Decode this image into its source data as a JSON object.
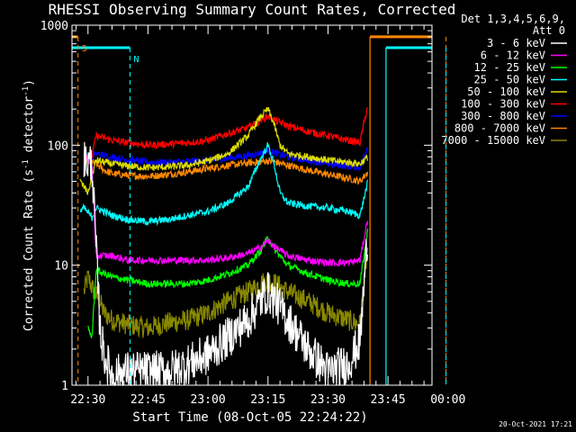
{
  "chart_data": {
    "type": "line",
    "title": "RHESSI Observing Summary Count Rates, Corrected",
    "xlabel": "Start Time (08-Oct-05 22:24:22)",
    "ylabel_main": "Corrected Count Rate (s",
    "ylabel_sup1": "-1",
    "ylabel_mid": " detector",
    "ylabel_sup2": "-1",
    "ylabel_end": ")",
    "y_scale": "log",
    "ylim": [
      1,
      1000
    ],
    "xlim_minutes": [
      -34,
      56
    ],
    "x_tick_minutes": [
      -30,
      -15,
      0,
      15,
      30,
      45,
      60
    ],
    "x_tick_labels": [
      "22:30",
      "22:45",
      "23:00",
      "23:15",
      "23:30",
      "23:45",
      "00:00"
    ],
    "y_tick_values": [
      1,
      10,
      100,
      1000
    ],
    "y_tick_labels": [
      "1",
      "10",
      "100",
      "1000"
    ],
    "detectors": "Det 1,3,4,5,6,9,",
    "attenuator": "Att 0",
    "timestamp": "20-Oct-2021 17:21",
    "series": [
      {
        "name": "3 - 6 keV",
        "color": "#ffffff",
        "points": [
          [
            -31,
            75
          ],
          [
            -29,
            70
          ],
          [
            -27,
            3
          ],
          [
            -26,
            1.8
          ],
          [
            -24,
            1.2
          ],
          [
            -20,
            1.3
          ],
          [
            -15,
            1.3
          ],
          [
            -10,
            1.3
          ],
          [
            -5,
            1.5
          ],
          [
            0,
            1.8
          ],
          [
            5,
            2.5
          ],
          [
            10,
            3.5
          ],
          [
            13,
            5
          ],
          [
            15,
            6
          ],
          [
            17,
            5
          ],
          [
            20,
            3.5
          ],
          [
            25,
            2
          ],
          [
            30,
            1.3
          ],
          [
            35,
            1.5
          ],
          [
            38,
            2.3
          ],
          [
            40,
            20
          ]
        ]
      },
      {
        "name": "6 - 12 keV",
        "color": "#ff00ff",
        "points": [
          [
            -31,
            80
          ],
          [
            -29,
            70
          ],
          [
            -28,
            12
          ],
          [
            -26,
            12
          ],
          [
            -24,
            12
          ],
          [
            -20,
            11
          ],
          [
            -15,
            11
          ],
          [
            -10,
            11
          ],
          [
            -5,
            11
          ],
          [
            0,
            11
          ],
          [
            5,
            11.5
          ],
          [
            10,
            12.5
          ],
          [
            13,
            14
          ],
          [
            15,
            16
          ],
          [
            17,
            14
          ],
          [
            20,
            12
          ],
          [
            25,
            11
          ],
          [
            30,
            10.5
          ],
          [
            35,
            10.5
          ],
          [
            38,
            11
          ],
          [
            40,
            25
          ]
        ]
      },
      {
        "name": "12 - 25 keV",
        "color": "#00ff00",
        "points": [
          [
            -30,
            3
          ],
          [
            -29,
            2.5
          ],
          [
            -28,
            9
          ],
          [
            -26,
            8.5
          ],
          [
            -24,
            8
          ],
          [
            -20,
            7.5
          ],
          [
            -15,
            7
          ],
          [
            -10,
            7
          ],
          [
            -5,
            7
          ],
          [
            0,
            7.5
          ],
          [
            5,
            8.5
          ],
          [
            10,
            10
          ],
          [
            13,
            13
          ],
          [
            15,
            17
          ],
          [
            17,
            13
          ],
          [
            20,
            10
          ],
          [
            25,
            8.5
          ],
          [
            30,
            7.5
          ],
          [
            35,
            7
          ],
          [
            38,
            7
          ],
          [
            40,
            20
          ]
        ]
      },
      {
        "name": "25 - 50 keV",
        "color": "#00ffff",
        "points": [
          [
            -32,
            28
          ],
          [
            -31,
            30
          ],
          [
            -29,
            25
          ],
          [
            -28,
            30
          ],
          [
            -26,
            28
          ],
          [
            -24,
            26
          ],
          [
            -20,
            24
          ],
          [
            -15,
            23
          ],
          [
            -10,
            24
          ],
          [
            -5,
            26
          ],
          [
            0,
            28
          ],
          [
            5,
            33
          ],
          [
            10,
            45
          ],
          [
            13,
            75
          ],
          [
            15,
            100
          ],
          [
            16.5,
            70
          ],
          [
            18,
            40
          ],
          [
            20,
            33
          ],
          [
            25,
            31
          ],
          [
            30,
            30
          ],
          [
            35,
            28
          ],
          [
            38,
            26
          ],
          [
            40,
            50
          ]
        ]
      },
      {
        "name": "50 - 100 keV",
        "color": "#dddd00",
        "points": [
          [
            -32,
            50
          ],
          [
            -31,
            45
          ],
          [
            -30,
            40
          ],
          [
            -29,
            55
          ],
          [
            -28,
            75
          ],
          [
            -26,
            72
          ],
          [
            -24,
            70
          ],
          [
            -20,
            67
          ],
          [
            -15,
            65
          ],
          [
            -10,
            66
          ],
          [
            -5,
            68
          ],
          [
            0,
            74
          ],
          [
            5,
            85
          ],
          [
            10,
            120
          ],
          [
            13,
            170
          ],
          [
            15,
            200
          ],
          [
            16.5,
            150
          ],
          [
            18,
            100
          ],
          [
            20,
            85
          ],
          [
            25,
            80
          ],
          [
            30,
            75
          ],
          [
            35,
            72
          ],
          [
            38,
            70
          ],
          [
            40,
            80
          ]
        ]
      },
      {
        "name": "100 - 300 keV",
        "color": "#ff0000",
        "points": [
          [
            -31,
            85
          ],
          [
            -29,
            80
          ],
          [
            -28,
            120
          ],
          [
            -26,
            115
          ],
          [
            -24,
            110
          ],
          [
            -20,
            105
          ],
          [
            -15,
            100
          ],
          [
            -10,
            102
          ],
          [
            -5,
            105
          ],
          [
            0,
            110
          ],
          [
            5,
            125
          ],
          [
            10,
            140
          ],
          [
            13,
            160
          ],
          [
            15,
            175
          ],
          [
            17,
            160
          ],
          [
            20,
            145
          ],
          [
            25,
            130
          ],
          [
            30,
            120
          ],
          [
            35,
            110
          ],
          [
            38,
            105
          ],
          [
            40,
            220
          ]
        ]
      },
      {
        "name": "300 - 800 keV",
        "color": "#0000ff",
        "points": [
          [
            -31,
            85
          ],
          [
            -29,
            80
          ],
          [
            -28,
            85
          ],
          [
            -26,
            82
          ],
          [
            -24,
            80
          ],
          [
            -20,
            75
          ],
          [
            -15,
            72
          ],
          [
            -10,
            72
          ],
          [
            -5,
            73
          ],
          [
            0,
            75
          ],
          [
            5,
            78
          ],
          [
            10,
            82
          ],
          [
            13,
            86
          ],
          [
            15,
            90
          ],
          [
            17,
            86
          ],
          [
            20,
            80
          ],
          [
            25,
            75
          ],
          [
            30,
            70
          ],
          [
            35,
            67
          ],
          [
            38,
            65
          ],
          [
            40,
            100
          ]
        ]
      },
      {
        "name": "800 - 7000 keV",
        "color": "#ff8800",
        "points": [
          [
            -31,
            75
          ],
          [
            -29,
            72
          ],
          [
            -28,
            70
          ],
          [
            -26,
            62
          ],
          [
            -24,
            58
          ],
          [
            -20,
            56
          ],
          [
            -15,
            55
          ],
          [
            -10,
            57
          ],
          [
            -5,
            60
          ],
          [
            0,
            64
          ],
          [
            5,
            68
          ],
          [
            10,
            71
          ],
          [
            13,
            73
          ],
          [
            15,
            74
          ],
          [
            17,
            72
          ],
          [
            20,
            68
          ],
          [
            25,
            62
          ],
          [
            30,
            57
          ],
          [
            35,
            53
          ],
          [
            38,
            50
          ],
          [
            40,
            60
          ]
        ]
      },
      {
        "name": "7000 - 15000 keV",
        "color": "#888800",
        "points": [
          [
            -31,
            6
          ],
          [
            -30,
            8
          ],
          [
            -29,
            6.5
          ],
          [
            -27,
            5
          ],
          [
            -26,
            4
          ],
          [
            -24,
            3.5
          ],
          [
            -20,
            3.2
          ],
          [
            -15,
            3
          ],
          [
            -10,
            3.3
          ],
          [
            -5,
            3.5
          ],
          [
            0,
            4
          ],
          [
            5,
            5
          ],
          [
            10,
            6
          ],
          [
            13,
            7
          ],
          [
            15,
            7.5
          ],
          [
            17,
            7
          ],
          [
            20,
            6
          ],
          [
            25,
            5
          ],
          [
            30,
            4
          ],
          [
            35,
            3.5
          ],
          [
            38,
            3.2
          ],
          [
            40,
            15
          ]
        ]
      }
    ],
    "saa_flags": {
      "s_label": "S",
      "n_label": "N",
      "s_color": "#ff8800",
      "n_color": "#00ffff",
      "left_s_level": 800,
      "left_n_level": 650,
      "right_s_level": 800,
      "right_n_level": 650,
      "left_s_end_minutes": -32.5,
      "left_n_end_minutes": -19.5,
      "right_s_start_minutes": 40.5,
      "right_n_start_minutes": 44.5,
      "dashed_s_minutes": [
        -32.5,
        59.5
      ],
      "dashed_n_minutes": [
        -19.5,
        59.5
      ]
    }
  }
}
